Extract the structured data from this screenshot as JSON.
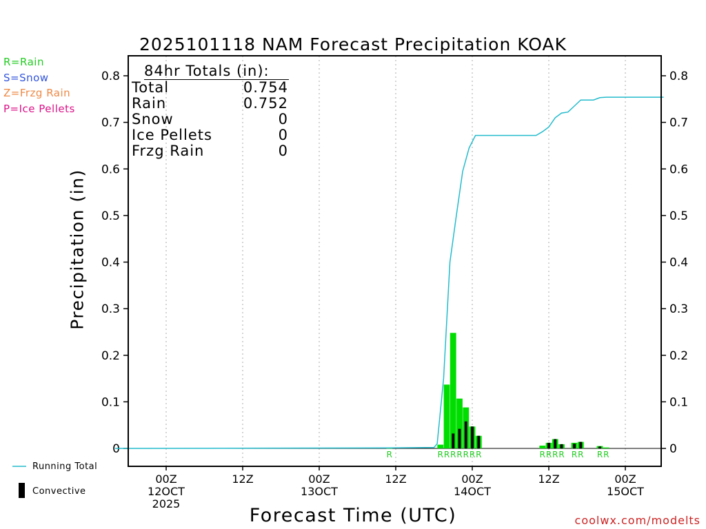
{
  "title": "2025101118 NAM Forecast Precipitation KOAK",
  "ylabel": "Precipitation (in)",
  "xlabel": "Forecast Time (UTC)",
  "watermark": "coolwx.com/modelts",
  "type_legend": [
    {
      "label": "R=Rain",
      "color": "#22cc22"
    },
    {
      "label": "S=Snow",
      "color": "#3355dd"
    },
    {
      "label": "Z=Frzg Rain",
      "color": "#ee8844"
    },
    {
      "label": "P=Ice Pellets",
      "color": "#dd1188"
    }
  ],
  "bottom_legend": {
    "running_total": "Running Total",
    "convective": "Convective"
  },
  "totals": {
    "header": "84hr Totals (in):",
    "rows": [
      {
        "label": "Total",
        "value": "0.754"
      },
      {
        "label": "Rain",
        "value": "0.752"
      },
      {
        "label": "Snow",
        "value": "0"
      },
      {
        "label": "Ice Pellets",
        "value": "0"
      },
      {
        "label": "Frzg Rain",
        "value": "0"
      }
    ]
  },
  "colors": {
    "rain_bar": "#00dd00",
    "convective_bar": "#000000",
    "running_total": "#22bbcc",
    "grid": "#aaaaaa",
    "precip_type_label": "#22cc22"
  },
  "chart_data": {
    "type": "bar",
    "x_unit": "forecast hour",
    "xlim": [
      -3,
      84
    ],
    "ylim": [
      0,
      0.8
    ],
    "y_ticks": [
      0,
      0.1,
      0.2,
      0.3,
      0.4,
      0.5,
      0.6,
      0.7,
      0.8
    ],
    "y_tick_labels": [
      "0",
      "0.1",
      "0.2",
      "0.3",
      "0.4",
      "0.5",
      "0.6",
      "0.7",
      "0.8"
    ],
    "x_ticks": [
      {
        "x": 6,
        "labels": [
          "00Z",
          "12OCT",
          "2025"
        ]
      },
      {
        "x": 18,
        "labels": [
          "12Z"
        ]
      },
      {
        "x": 30,
        "labels": [
          "00Z",
          "13OCT"
        ]
      },
      {
        "x": 42,
        "labels": [
          "12Z"
        ]
      },
      {
        "x": 54,
        "labels": [
          "00Z",
          "14OCT"
        ]
      },
      {
        "x": 66,
        "labels": [
          "12Z"
        ]
      },
      {
        "x": 78,
        "labels": [
          "00Z",
          "15OCT"
        ]
      }
    ],
    "series": [
      {
        "name": "Rain",
        "values": [
          {
            "x": 41,
            "y": 0.001
          },
          {
            "x": 49,
            "y": 0.008
          },
          {
            "x": 50,
            "y": 0.137
          },
          {
            "x": 51,
            "y": 0.248
          },
          {
            "x": 52,
            "y": 0.107
          },
          {
            "x": 53,
            "y": 0.088
          },
          {
            "x": 54,
            "y": 0.047
          },
          {
            "x": 55,
            "y": 0.027
          },
          {
            "x": 65,
            "y": 0.006
          },
          {
            "x": 66,
            "y": 0.012
          },
          {
            "x": 67,
            "y": 0.02
          },
          {
            "x": 68,
            "y": 0.009
          },
          {
            "x": 70,
            "y": 0.012
          },
          {
            "x": 71,
            "y": 0.014
          },
          {
            "x": 74,
            "y": 0.005
          },
          {
            "x": 75,
            "y": 0.002
          }
        ]
      },
      {
        "name": "Convective",
        "values": [
          {
            "x": 51,
            "y": 0.032
          },
          {
            "x": 52,
            "y": 0.042
          },
          {
            "x": 53,
            "y": 0.058
          },
          {
            "x": 54,
            "y": 0.047
          },
          {
            "x": 55,
            "y": 0.027
          },
          {
            "x": 66,
            "y": 0.012
          },
          {
            "x": 67,
            "y": 0.02
          },
          {
            "x": 68,
            "y": 0.009
          },
          {
            "x": 70,
            "y": 0.01
          },
          {
            "x": 71,
            "y": 0.014
          },
          {
            "x": 74,
            "y": 0.004
          }
        ]
      },
      {
        "name": "Running Total",
        "points": [
          [
            -2,
            0
          ],
          [
            41,
            0.001
          ],
          [
            48,
            0.002
          ],
          [
            48.5,
            0.01
          ],
          [
            49.5,
            0.15
          ],
          [
            50.5,
            0.4
          ],
          [
            51.5,
            0.5
          ],
          [
            52.5,
            0.595
          ],
          [
            53.5,
            0.645
          ],
          [
            54.5,
            0.672
          ],
          [
            55.5,
            0.672
          ],
          [
            64,
            0.672
          ],
          [
            65,
            0.68
          ],
          [
            66,
            0.69
          ],
          [
            67,
            0.71
          ],
          [
            68,
            0.72
          ],
          [
            69,
            0.722
          ],
          [
            70,
            0.735
          ],
          [
            71,
            0.748
          ],
          [
            73,
            0.748
          ],
          [
            74,
            0.753
          ],
          [
            75,
            0.754
          ],
          [
            84,
            0.754
          ]
        ]
      }
    ],
    "type_labels": [
      {
        "x": 41,
        "text": "R"
      },
      {
        "x": 49,
        "text": "R"
      },
      {
        "x": 50,
        "text": "R"
      },
      {
        "x": 51,
        "text": "R"
      },
      {
        "x": 52,
        "text": "R"
      },
      {
        "x": 53,
        "text": "R"
      },
      {
        "x": 54,
        "text": "R"
      },
      {
        "x": 55,
        "text": "R"
      },
      {
        "x": 65,
        "text": "R"
      },
      {
        "x": 66,
        "text": "R"
      },
      {
        "x": 67,
        "text": "R"
      },
      {
        "x": 68,
        "text": "R"
      },
      {
        "x": 70,
        "text": "R"
      },
      {
        "x": 71,
        "text": "R"
      },
      {
        "x": 74,
        "text": "R"
      },
      {
        "x": 75,
        "text": "R"
      }
    ]
  }
}
